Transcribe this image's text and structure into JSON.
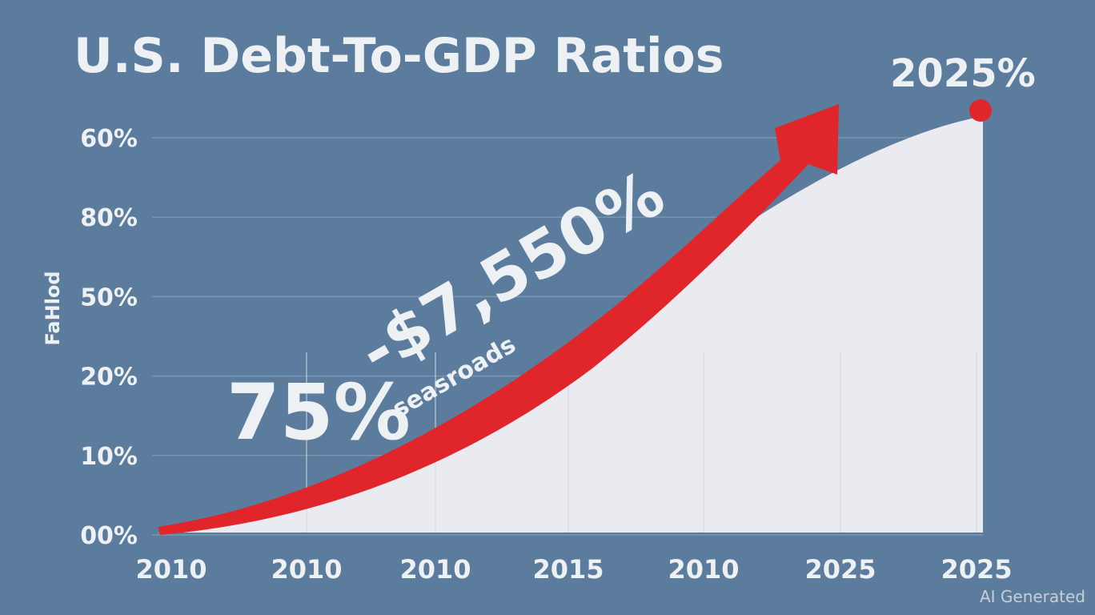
{
  "title": "U.S. Debt-To-GDP Ratios",
  "y_axis_title": "FaHlod",
  "y_labels": [
    "60%",
    "80%",
    "50%",
    "20%",
    "10%",
    "00%"
  ],
  "x_labels": [
    "2010",
    "2010",
    "2010",
    "2015",
    "2010",
    "2025",
    "2025"
  ],
  "annotations": {
    "end_label": "2025%",
    "big_label": "75%",
    "arrow_label": "-$7,550%",
    "arrow_sublabel": "seasroads"
  },
  "watermark": "AI Generated"
}
